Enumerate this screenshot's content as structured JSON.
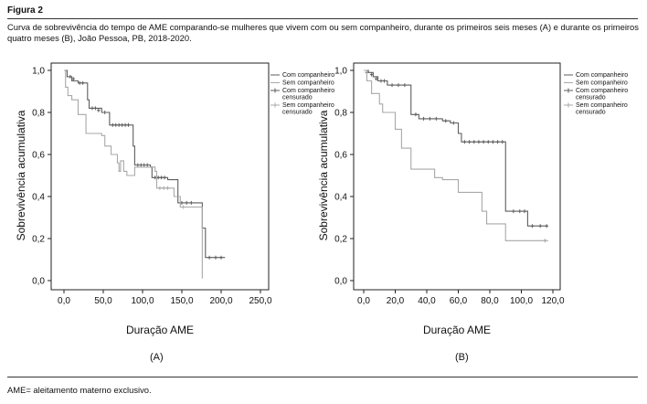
{
  "figure": {
    "title": "Figura 2",
    "caption": "Curva de sobrevivência do tempo de AME comparando-se mulheres que vivem com ou sem companheiro, durante os primeiros seis meses (A) e durante os primeiros quatro meses (B), João Pessoa, PB, 2018-2020.",
    "footnote": "AME= aleitamento materno exclusivo."
  },
  "colors": {
    "com_companheiro": "#5e5e5e",
    "sem_companheiro": "#a8a8a8"
  },
  "chart_data": [
    {
      "type": "line",
      "panel_label": "(A)",
      "xlabel": "Duração AME",
      "ylabel": "Sobrevivência acumulativa",
      "xlim": [
        0,
        250
      ],
      "ylim": [
        0,
        1
      ],
      "xticks": [
        "0,0",
        "50,0",
        "100,0",
        "150,0",
        "200,0",
        "250,0"
      ],
      "yticks": [
        "0,0",
        "0,2",
        "0,4",
        "0,6",
        "0,8",
        "1,0"
      ],
      "legend_position": "top-right",
      "legend": [
        "Com companheiro",
        "Sem companheiro",
        "Com companheiro censurado",
        "Sem companheiro censurado"
      ],
      "series": [
        {
          "name": "Com companheiro",
          "steps": [
            [
              0,
              1.0
            ],
            [
              4,
              0.97
            ],
            [
              10,
              0.95
            ],
            [
              18,
              0.94
            ],
            [
              30,
              0.86
            ],
            [
              32,
              0.82
            ],
            [
              48,
              0.8
            ],
            [
              58,
              0.74
            ],
            [
              88,
              0.64
            ],
            [
              90,
              0.55
            ],
            [
              110,
              0.54
            ],
            [
              112,
              0.49
            ],
            [
              132,
              0.48
            ],
            [
              145,
              0.37
            ],
            [
              176,
              0.25
            ],
            [
              180,
              0.11
            ],
            [
              205,
              0.11
            ]
          ],
          "censored": [
            [
              8,
              0.97
            ],
            [
              12,
              0.96
            ],
            [
              20,
              0.94
            ],
            [
              24,
              0.94
            ],
            [
              36,
              0.82
            ],
            [
              40,
              0.82
            ],
            [
              44,
              0.81
            ],
            [
              52,
              0.8
            ],
            [
              62,
              0.74
            ],
            [
              66,
              0.74
            ],
            [
              70,
              0.74
            ],
            [
              74,
              0.74
            ],
            [
              78,
              0.74
            ],
            [
              82,
              0.74
            ],
            [
              94,
              0.55
            ],
            [
              98,
              0.55
            ],
            [
              102,
              0.55
            ],
            [
              106,
              0.55
            ],
            [
              116,
              0.49
            ],
            [
              120,
              0.49
            ],
            [
              124,
              0.49
            ],
            [
              128,
              0.49
            ],
            [
              150,
              0.37
            ],
            [
              156,
              0.37
            ],
            [
              162,
              0.37
            ],
            [
              185,
              0.11
            ],
            [
              193,
              0.11
            ],
            [
              200,
              0.11
            ]
          ]
        },
        {
          "name": "Sem companheiro",
          "steps": [
            [
              0,
              1.0
            ],
            [
              2,
              0.92
            ],
            [
              5,
              0.88
            ],
            [
              10,
              0.86
            ],
            [
              18,
              0.79
            ],
            [
              28,
              0.7
            ],
            [
              48,
              0.69
            ],
            [
              52,
              0.64
            ],
            [
              60,
              0.6
            ],
            [
              68,
              0.56
            ],
            [
              70,
              0.52
            ],
            [
              72,
              0.57
            ],
            [
              76,
              0.52
            ],
            [
              80,
              0.5
            ],
            [
              90,
              0.54
            ],
            [
              116,
              0.52
            ],
            [
              118,
              0.44
            ],
            [
              140,
              0.4
            ],
            [
              148,
              0.35
            ],
            [
              176,
              0.01
            ]
          ],
          "censored": [
            [
              122,
              0.44
            ],
            [
              127,
              0.44
            ],
            [
              132,
              0.44
            ],
            [
              152,
              0.35
            ]
          ]
        }
      ]
    },
    {
      "type": "line",
      "panel_label": "(B)",
      "xlabel": "Duração AME",
      "ylabel": "Sobrevivência acumulativa",
      "xlim": [
        0,
        120
      ],
      "ylim": [
        0,
        1
      ],
      "xticks": [
        "0,0",
        "20,0",
        "40,0",
        "60,0",
        "80,0",
        "100,0",
        "120,0"
      ],
      "yticks": [
        "0,0",
        "0,2",
        "0,4",
        "0,6",
        "0,8",
        "1,0"
      ],
      "legend_position": "top-right",
      "legend": [
        "Com companheiro",
        "Sem companheiro",
        "Com companheiro censurado",
        "Sem companheiro censurado"
      ],
      "series": [
        {
          "name": "Com companheiro",
          "steps": [
            [
              0,
              1.0
            ],
            [
              3,
              0.99
            ],
            [
              6,
              0.97
            ],
            [
              9,
              0.95
            ],
            [
              15,
              0.93
            ],
            [
              30,
              0.79
            ],
            [
              35,
              0.77
            ],
            [
              50,
              0.76
            ],
            [
              55,
              0.75
            ],
            [
              60,
              0.7
            ],
            [
              62,
              0.66
            ],
            [
              90,
              0.33
            ],
            [
              104,
              0.26
            ],
            [
              117,
              0.26
            ]
          ],
          "censored": [
            [
              2,
              0.99
            ],
            [
              5,
              0.98
            ],
            [
              8,
              0.96
            ],
            [
              11,
              0.95
            ],
            [
              13,
              0.95
            ],
            [
              18,
              0.93
            ],
            [
              22,
              0.93
            ],
            [
              26,
              0.93
            ],
            [
              33,
              0.79
            ],
            [
              38,
              0.77
            ],
            [
              42,
              0.77
            ],
            [
              46,
              0.77
            ],
            [
              52,
              0.76
            ],
            [
              57,
              0.75
            ],
            [
              64,
              0.66
            ],
            [
              67,
              0.66
            ],
            [
              70,
              0.66
            ],
            [
              73,
              0.66
            ],
            [
              76,
              0.66
            ],
            [
              79,
              0.66
            ],
            [
              82,
              0.66
            ],
            [
              85,
              0.66
            ],
            [
              88,
              0.66
            ],
            [
              95,
              0.33
            ],
            [
              99,
              0.33
            ],
            [
              102,
              0.33
            ],
            [
              107,
              0.26
            ],
            [
              112,
              0.26
            ],
            [
              116,
              0.26
            ]
          ]
        },
        {
          "name": "Sem companheiro",
          "steps": [
            [
              0,
              1.0
            ],
            [
              2,
              0.95
            ],
            [
              5,
              0.89
            ],
            [
              10,
              0.84
            ],
            [
              12,
              0.8
            ],
            [
              20,
              0.72
            ],
            [
              24,
              0.63
            ],
            [
              30,
              0.53
            ],
            [
              45,
              0.49
            ],
            [
              50,
              0.48
            ],
            [
              60,
              0.42
            ],
            [
              75,
              0.33
            ],
            [
              78,
              0.27
            ],
            [
              90,
              0.19
            ],
            [
              117,
              0.19
            ]
          ],
          "censored": [
            [
              115,
              0.19
            ]
          ]
        }
      ]
    }
  ]
}
